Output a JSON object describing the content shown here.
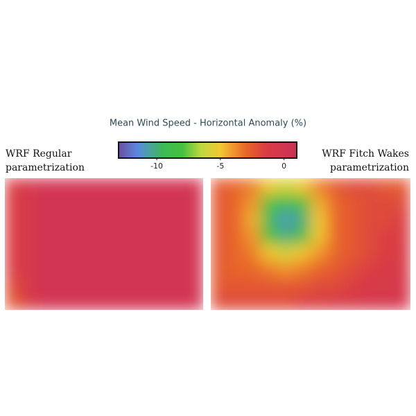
{
  "chart_data": {
    "type": "heatmap",
    "title": "Mean Wind Speed - Horizontal Anomaly (%)",
    "clim": [
      -13,
      1
    ],
    "cticks": [
      -10,
      -5,
      0
    ],
    "colorscale": [
      [
        -13,
        "#6c4e9e"
      ],
      [
        -11.5,
        "#5a8ae0"
      ],
      [
        -9.5,
        "#3dba55"
      ],
      [
        -8,
        "#45c040"
      ],
      [
        -6.5,
        "#c0d840"
      ],
      [
        -5,
        "#f2c832"
      ],
      [
        -4,
        "#f0962d"
      ],
      [
        -3,
        "#e8662a"
      ],
      [
        -1.5,
        "#da3d42"
      ],
      [
        0,
        "#d23552"
      ],
      [
        1,
        "#c83050"
      ]
    ],
    "panels": [
      {
        "label": [
          "WRF Regular",
          "parametrization"
        ],
        "values": [
          [
            -1.5,
            -0.5,
            0,
            0,
            0,
            0,
            0,
            0,
            0,
            0,
            0,
            0
          ],
          [
            -1.5,
            -0.5,
            0,
            0,
            0,
            0,
            0,
            0,
            0,
            0,
            0,
            0
          ],
          [
            -1.5,
            -0.5,
            0,
            0,
            0,
            0,
            0,
            0,
            0,
            0,
            0,
            0
          ],
          [
            -1.5,
            -0.5,
            0,
            0,
            0,
            0,
            0,
            0,
            0,
            0,
            0,
            0
          ],
          [
            -1.5,
            -0.5,
            0,
            0,
            0,
            0,
            0,
            0,
            0,
            0,
            0,
            0
          ],
          [
            -1.5,
            -0.5,
            0,
            0,
            0,
            0,
            0,
            0,
            0,
            0,
            0,
            0
          ],
          [
            -2,
            -0.5,
            0,
            0,
            0,
            0,
            0,
            0,
            0,
            0,
            0,
            0
          ],
          [
            -2.5,
            -1,
            0,
            0,
            0,
            0,
            0,
            0,
            0,
            0,
            0,
            0
          ]
        ]
      },
      {
        "label": [
          "WRF Fitch Wakes",
          "parametrization"
        ],
        "values": [
          [
            -2.5,
            -3,
            -3.5,
            -5,
            -6,
            -5,
            -3.5,
            -2.5,
            -2,
            -2,
            -2.5,
            -2.5
          ],
          [
            -2.5,
            -3,
            -4,
            -8,
            -9,
            -8,
            -4.5,
            -3,
            -2.5,
            -2,
            -2,
            -2
          ],
          [
            -2.5,
            -3,
            -4.5,
            -9,
            -11,
            -10,
            -5,
            -3,
            -2.5,
            -2,
            -2,
            -1.5
          ],
          [
            -2.5,
            -3,
            -4,
            -8,
            -10,
            -9,
            -5,
            -3,
            -2.5,
            -2,
            -1.5,
            -1.5
          ],
          [
            -2.5,
            -3,
            -3.5,
            -5,
            -6,
            -5,
            -4,
            -3,
            -2.5,
            -2,
            -1.5,
            -1
          ],
          [
            -2.5,
            -3,
            -3,
            -3.5,
            -4,
            -3.5,
            -3,
            -2.5,
            -2,
            -1.5,
            -1,
            -1
          ],
          [
            -2.5,
            -2.5,
            -2.5,
            -2.5,
            -2.5,
            -2.5,
            -2,
            -2,
            -1.5,
            -1,
            -1,
            -0.5
          ],
          [
            -2,
            -2,
            -2,
            -2,
            -2,
            -1.5,
            -1.5,
            -1,
            -1,
            -0.5,
            -0.5,
            -0.5
          ]
        ]
      }
    ]
  }
}
